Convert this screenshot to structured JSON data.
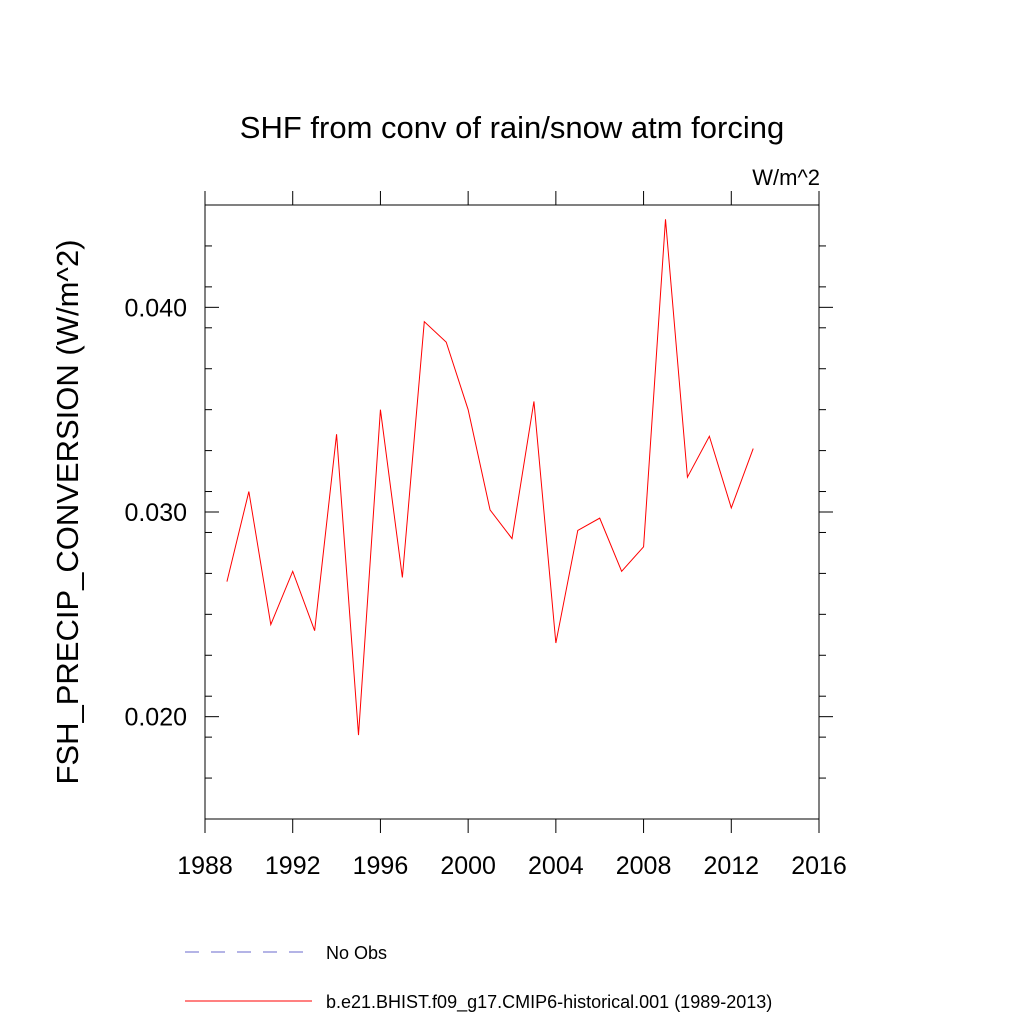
{
  "chart_data": {
    "type": "line",
    "title": "SHF from conv of rain/snow atm forcing",
    "units": "W/m^2",
    "xlabel": "",
    "ylabel": "FSH_PRECIP_CONVERSION  (W/m^2)",
    "xlim": [
      1988,
      2016
    ],
    "ylim": [
      0.015,
      0.045
    ],
    "x_major_ticks": [
      1988,
      1992,
      1996,
      2000,
      2004,
      2008,
      2012,
      2016
    ],
    "x_tick_labels": [
      "1988",
      "1992",
      "1996",
      "2000",
      "2004",
      "2008",
      "2012",
      "2016"
    ],
    "y_major_ticks": [
      0.02,
      0.03,
      0.04
    ],
    "y_tick_labels": [
      "0.020",
      "0.030",
      "0.040"
    ],
    "grid": false,
    "series": [
      {
        "name": "b.e21.BHIST.f09_g17.CMIP6-historical.001 (1989-2013)",
        "color": "#ff0000",
        "style": "solid",
        "x": [
          1989,
          1990,
          1991,
          1992,
          1993,
          1994,
          1995,
          1996,
          1997,
          1998,
          1999,
          2000,
          2001,
          2002,
          2003,
          2004,
          2005,
          2006,
          2007,
          2008,
          2009,
          2010,
          2011,
          2012,
          2013
        ],
        "values": [
          0.0266,
          0.031,
          0.0245,
          0.0271,
          0.0242,
          0.0338,
          0.0191,
          0.035,
          0.0268,
          0.0393,
          0.0383,
          0.035,
          0.0301,
          0.0287,
          0.0354,
          0.0236,
          0.0291,
          0.0297,
          0.0271,
          0.0283,
          0.0443,
          0.0317,
          0.0337,
          0.0302,
          0.0331
        ]
      }
    ],
    "legend": [
      {
        "label": "No Obs",
        "color": "#6a6acd",
        "style": "dashed"
      },
      {
        "label": "b.e21.BHIST.f09_g17.CMIP6-historical.001 (1989-2013)",
        "color": "#ff0000",
        "style": "solid"
      }
    ]
  }
}
